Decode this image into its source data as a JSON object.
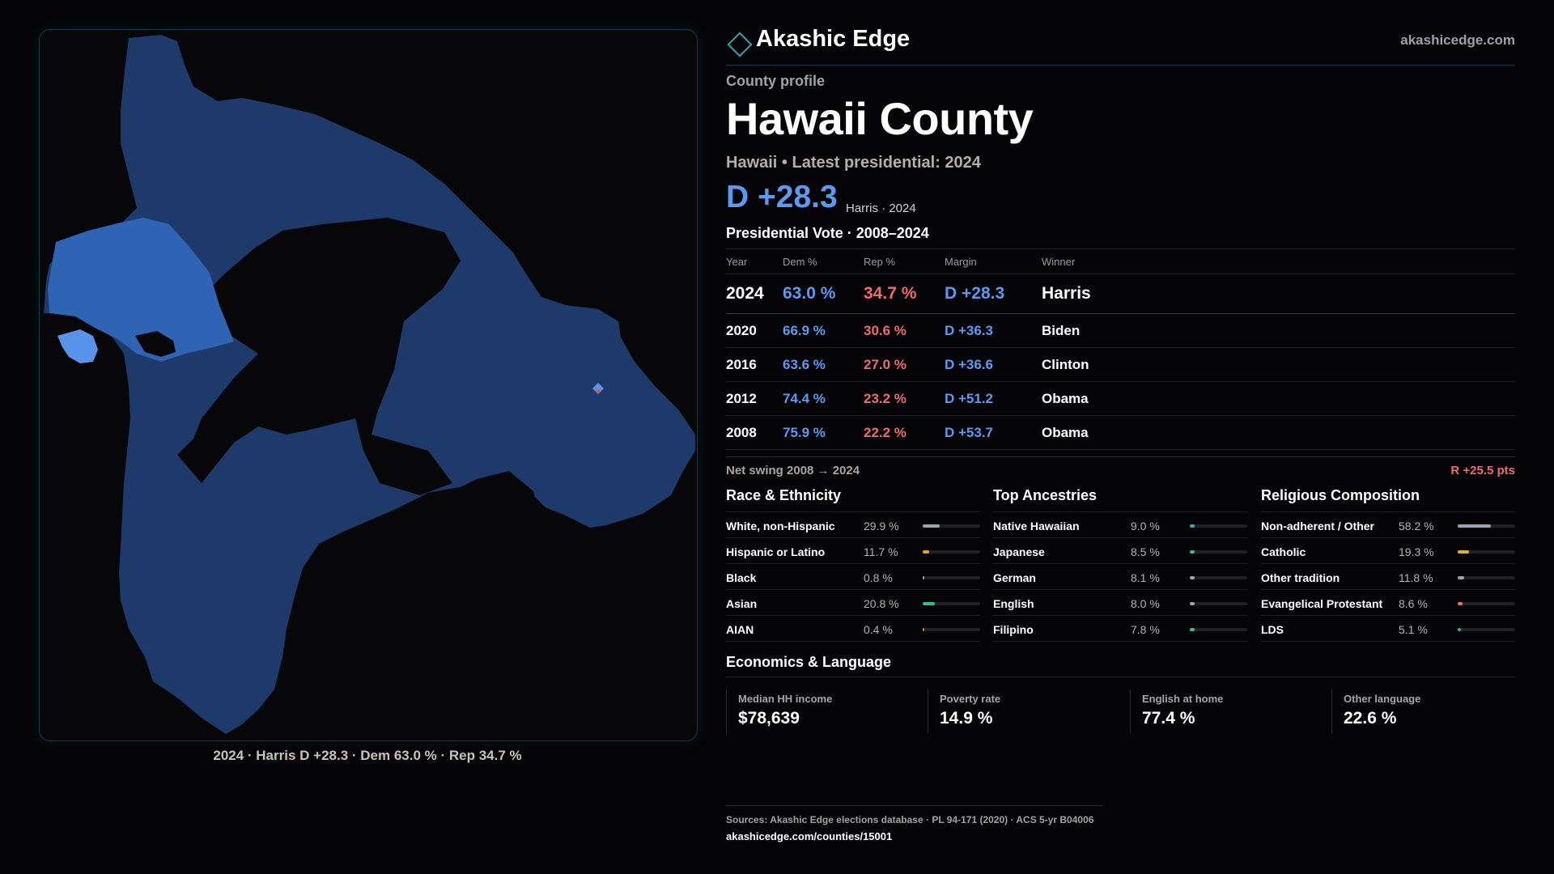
{
  "map": {
    "caption": "2024 · Harris D +28.3 · Dem 63.0 % · Rep 34.7 %",
    "colors": {
      "base": "#1d3a6a",
      "medium": "#2f63b4",
      "light": "#5a93ec",
      "background": "#070709"
    }
  },
  "header": {
    "brand": "Akashic Edge",
    "site": "akashicedge.com"
  },
  "profile": {
    "eyebrow": "County profile",
    "title": "Hawaii County",
    "subtitle": "Hawaii • Latest presidential: 2024",
    "margin": "D +28.3",
    "margin_note": "Harris · 2024"
  },
  "presidential": {
    "title": "Presidential Vote · 2008–2024",
    "columns": [
      "Year",
      "Dem %",
      "Rep %",
      "Margin",
      "Winner"
    ],
    "rows": [
      {
        "year": "2024",
        "dem": "63.0 %",
        "rep": "34.7 %",
        "margin": "D +28.3",
        "winner": "Harris"
      },
      {
        "year": "2020",
        "dem": "66.9 %",
        "rep": "30.6 %",
        "margin": "D +36.3",
        "winner": "Biden"
      },
      {
        "year": "2016",
        "dem": "63.6 %",
        "rep": "27.0 %",
        "margin": "D +36.6",
        "winner": "Clinton"
      },
      {
        "year": "2012",
        "dem": "74.4 %",
        "rep": "23.2 %",
        "margin": "D +51.2",
        "winner": "Obama"
      },
      {
        "year": "2008",
        "dem": "75.9 %",
        "rep": "22.2 %",
        "margin": "D +53.7",
        "winner": "Obama"
      }
    ],
    "swing_label": "Net swing 2008 → 2024",
    "swing_value": "R +25.5 pts"
  },
  "demographics": [
    {
      "title": "Race & Ethnicity",
      "items": [
        {
          "label": "White, non-Hispanic",
          "pct": "29.9 %",
          "share": 0.299,
          "color": "#9ea3ad"
        },
        {
          "label": "Hispanic or Latino",
          "pct": "11.7 %",
          "share": 0.117,
          "color": "#e0a22a"
        },
        {
          "label": "Black",
          "pct": "0.8 %",
          "share": 0.008,
          "color": "#9ea3ad"
        },
        {
          "label": "Asian",
          "pct": "20.8 %",
          "share": 0.208,
          "color": "#2fc08f"
        },
        {
          "label": "AIAN",
          "pct": "0.4 %",
          "share": 0.004,
          "color": "#e07a3a"
        }
      ]
    },
    {
      "title": "Top Ancestries",
      "items": [
        {
          "label": "Native Hawaiian",
          "pct": "9.0 %",
          "share": 0.09,
          "color": "#2fb0b8"
        },
        {
          "label": "Japanese",
          "pct": "8.5 %",
          "share": 0.085,
          "color": "#2fc08f"
        },
        {
          "label": "German",
          "pct": "8.1 %",
          "share": 0.081,
          "color": "#9ea3ad"
        },
        {
          "label": "English",
          "pct": "8.0 %",
          "share": 0.08,
          "color": "#9ea3ad"
        },
        {
          "label": "Filipino",
          "pct": "7.8 %",
          "share": 0.078,
          "color": "#2fc08f"
        }
      ]
    },
    {
      "title": "Religious Composition",
      "items": [
        {
          "label": "Non-adherent / Other",
          "pct": "58.2 %",
          "share": 0.582,
          "color": "#9ea3ad"
        },
        {
          "label": "Catholic",
          "pct": "19.3 %",
          "share": 0.193,
          "color": "#e0b22a"
        },
        {
          "label": "Other tradition",
          "pct": "11.8 %",
          "share": 0.118,
          "color": "#9ea3ad"
        },
        {
          "label": "Evangelical Protestant",
          "pct": "8.6 %",
          "share": 0.086,
          "color": "#f06a6f"
        },
        {
          "label": "LDS",
          "pct": "5.1 %",
          "share": 0.051,
          "color": "#2fb0b8"
        }
      ]
    }
  ],
  "economics": {
    "title": "Economics & Language",
    "items": [
      {
        "label": "Median HH income",
        "value": "$78,639"
      },
      {
        "label": "Poverty rate",
        "value": "14.9 %"
      },
      {
        "label": "English at home",
        "value": "77.4 %"
      },
      {
        "label": "Other language",
        "value": "22.6 %"
      }
    ]
  },
  "footer": {
    "sources": "Sources: Akashic Edge elections database · PL 94-171 (2020) · ACS 5-yr B04006",
    "url": "akashicedge.com/counties/15001"
  }
}
